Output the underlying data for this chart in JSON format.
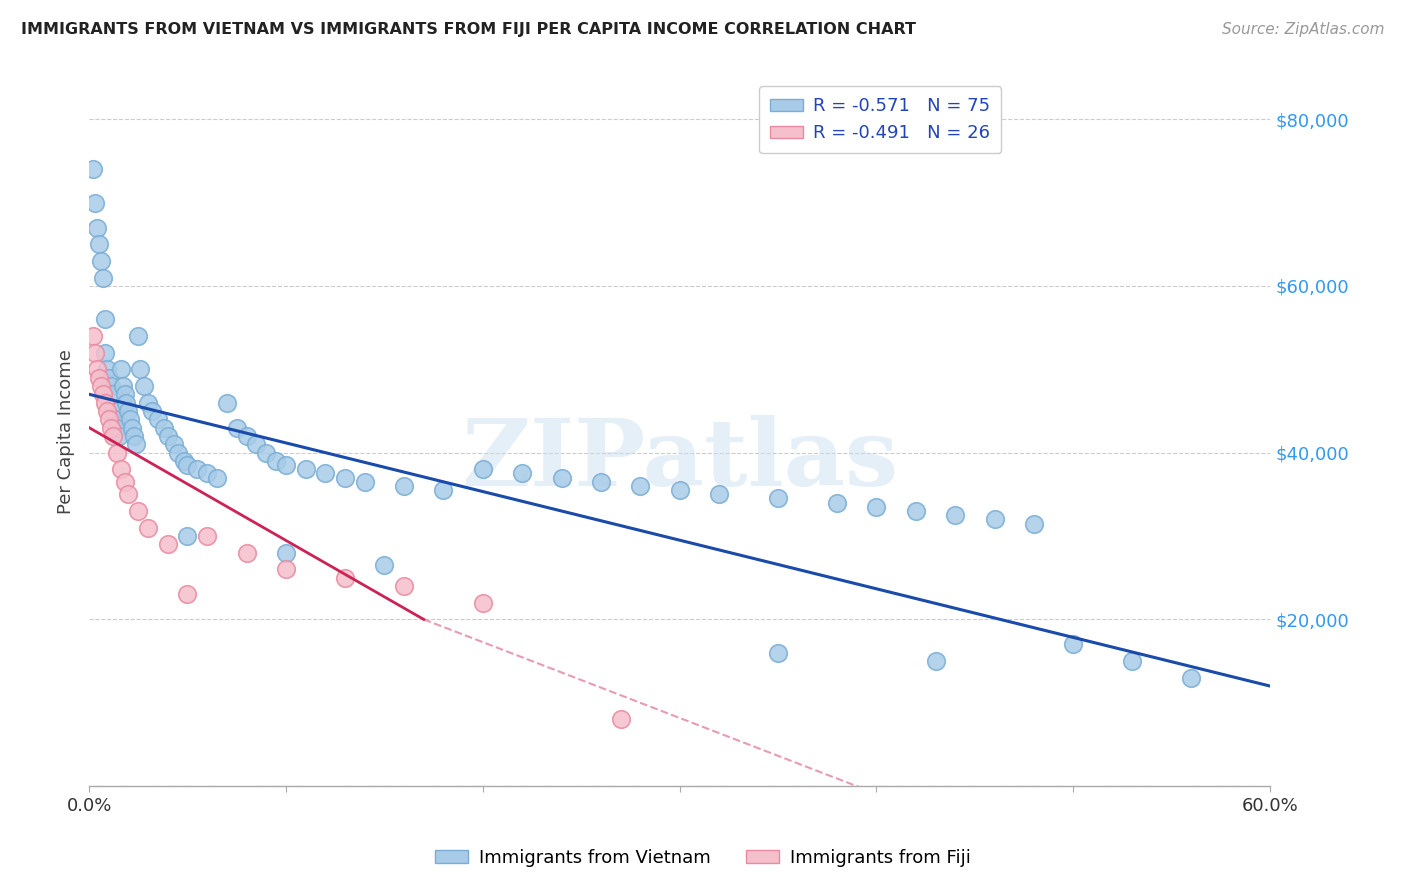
{
  "title": "IMMIGRANTS FROM VIETNAM VS IMMIGRANTS FROM FIJI PER CAPITA INCOME CORRELATION CHART",
  "source": "Source: ZipAtlas.com",
  "ylabel": "Per Capita Income",
  "x_min": 0.0,
  "x_max": 0.6,
  "y_min": 0,
  "y_max": 85000,
  "x_ticks": [
    0.0,
    0.1,
    0.2,
    0.3,
    0.4,
    0.5,
    0.6
  ],
  "x_tick_labels": [
    "0.0%",
    "",
    "",
    "",
    "",
    "",
    "60.0%"
  ],
  "y_ticks": [
    0,
    20000,
    40000,
    60000,
    80000
  ],
  "y_tick_labels": [
    "",
    "$20,000",
    "$40,000",
    "$60,000",
    "$80,000"
  ],
  "legend1_label": "R = -0.571   N = 75",
  "legend2_label": "R = -0.491   N = 26",
  "watermark": "ZIPatlas",
  "blue_color": "#a8cce8",
  "blue_edge_color": "#7aadd4",
  "pink_color": "#f5bfcc",
  "pink_edge_color": "#e88aa0",
  "blue_line_color": "#1a4aaa",
  "pink_line_color": "#cc2255",
  "blue_trendline": [
    0.0,
    47000,
    0.6,
    12000
  ],
  "pink_trendline_solid": [
    0.0,
    43000,
    0.17,
    20000
  ],
  "pink_trendline_dash": [
    0.17,
    20000,
    0.5,
    -10000
  ],
  "vietnam_x": [
    0.002,
    0.003,
    0.004,
    0.005,
    0.006,
    0.007,
    0.008,
    0.008,
    0.009,
    0.01,
    0.011,
    0.012,
    0.012,
    0.013,
    0.014,
    0.015,
    0.016,
    0.017,
    0.018,
    0.019,
    0.02,
    0.021,
    0.022,
    0.023,
    0.024,
    0.025,
    0.026,
    0.028,
    0.03,
    0.032,
    0.035,
    0.038,
    0.04,
    0.043,
    0.045,
    0.048,
    0.05,
    0.055,
    0.06,
    0.065,
    0.07,
    0.075,
    0.08,
    0.085,
    0.09,
    0.095,
    0.1,
    0.11,
    0.12,
    0.13,
    0.14,
    0.16,
    0.18,
    0.2,
    0.22,
    0.24,
    0.26,
    0.28,
    0.3,
    0.32,
    0.35,
    0.38,
    0.4,
    0.42,
    0.44,
    0.46,
    0.48,
    0.5,
    0.53,
    0.56,
    0.05,
    0.1,
    0.15,
    0.35,
    0.43
  ],
  "vietnam_y": [
    74000,
    70000,
    67000,
    65000,
    63000,
    61000,
    56000,
    52000,
    50000,
    49000,
    48000,
    47000,
    45000,
    44000,
    43000,
    42000,
    50000,
    48000,
    47000,
    46000,
    45000,
    44000,
    43000,
    42000,
    41000,
    54000,
    50000,
    48000,
    46000,
    45000,
    44000,
    43000,
    42000,
    41000,
    40000,
    39000,
    38500,
    38000,
    37500,
    37000,
    46000,
    43000,
    42000,
    41000,
    40000,
    39000,
    38500,
    38000,
    37500,
    37000,
    36500,
    36000,
    35500,
    38000,
    37500,
    37000,
    36500,
    36000,
    35500,
    35000,
    34500,
    34000,
    33500,
    33000,
    32500,
    32000,
    31500,
    17000,
    15000,
    13000,
    30000,
    28000,
    26500,
    16000,
    15000
  ],
  "fiji_x": [
    0.002,
    0.003,
    0.004,
    0.005,
    0.006,
    0.007,
    0.008,
    0.009,
    0.01,
    0.011,
    0.012,
    0.014,
    0.016,
    0.018,
    0.02,
    0.025,
    0.03,
    0.04,
    0.05,
    0.06,
    0.08,
    0.1,
    0.13,
    0.16,
    0.2,
    0.27
  ],
  "fiji_y": [
    54000,
    52000,
    50000,
    49000,
    48000,
    47000,
    46000,
    45000,
    44000,
    43000,
    42000,
    40000,
    38000,
    36500,
    35000,
    33000,
    31000,
    29000,
    23000,
    30000,
    28000,
    26000,
    25000,
    24000,
    22000,
    8000
  ]
}
